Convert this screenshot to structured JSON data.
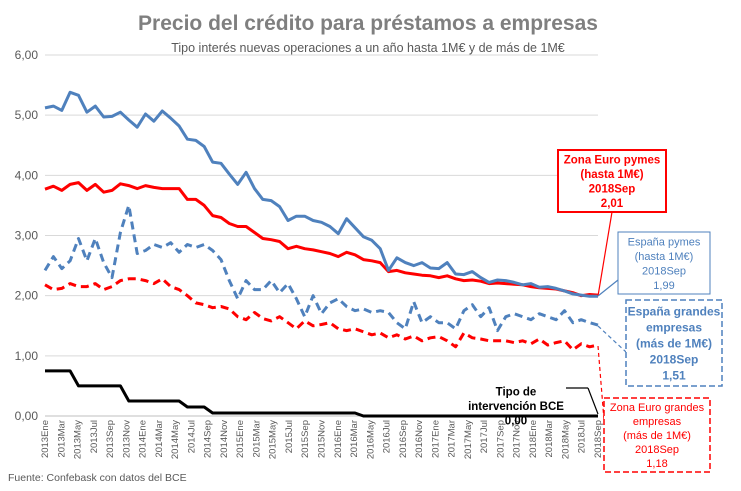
{
  "chart_data": {
    "type": "line",
    "title": "Precio del crédito para préstamos a empresas",
    "subtitle": "Tipo interés nuevas operaciones a un año hasta 1M€ y de más de 1M€",
    "source": "Fuente: Confebask con datos del BCE",
    "xlabel": "",
    "ylabel": "",
    "ylim": [
      0,
      6
    ],
    "ytick_labels": [
      "0,00",
      "1,00",
      "2,00",
      "3,00",
      "4,00",
      "5,00",
      "6,00"
    ],
    "grid": true,
    "x_tick_labels": [
      "2013Ene",
      "2013Mar",
      "2013May",
      "2013Jul",
      "2013Sep",
      "2013Nov",
      "2014Ene",
      "2014Mar",
      "2014May",
      "2014Jul",
      "2014Sep",
      "2014Nov",
      "2015Ene",
      "2015Mar",
      "2015May",
      "2015Jul",
      "2015Sep",
      "2015Nov",
      "2016Ene",
      "2016Mar",
      "2016May",
      "2016Jul",
      "2016Sep",
      "2016Nov",
      "2017Ene",
      "2017Mar",
      "2017May",
      "2017Jul",
      "2017Sep",
      "2017Nov",
      "2018Ene",
      "2018Mar",
      "2018May",
      "2018Jul",
      "2018Sep"
    ],
    "series": [
      {
        "name": "España pymes (hasta 1M€)",
        "color": "#4F81BD",
        "style": "solid",
        "values": [
          5.12,
          5.15,
          5.08,
          5.38,
          5.33,
          5.05,
          5.15,
          4.97,
          4.98,
          5.05,
          4.92,
          4.8,
          5.02,
          4.9,
          5.07,
          4.95,
          4.82,
          4.6,
          4.58,
          4.48,
          4.22,
          4.2,
          4.02,
          3.85,
          4.05,
          3.78,
          3.6,
          3.58,
          3.48,
          3.25,
          3.32,
          3.32,
          3.25,
          3.22,
          3.15,
          3.03,
          3.28,
          3.13,
          2.98,
          2.92,
          2.78,
          2.42,
          2.63,
          2.55,
          2.5,
          2.55,
          2.46,
          2.45,
          2.55,
          2.36,
          2.35,
          2.4,
          2.3,
          2.22,
          2.26,
          2.25,
          2.22,
          2.18,
          2.2,
          2.14,
          2.15,
          2.12,
          2.08,
          2.03,
          2.01,
          1.99,
          1.99
        ]
      },
      {
        "name": "Zona Euro pymes (hasta 1M€)",
        "color": "#FF0000",
        "style": "solid",
        "values": [
          3.77,
          3.82,
          3.75,
          3.85,
          3.88,
          3.75,
          3.85,
          3.72,
          3.75,
          3.86,
          3.83,
          3.78,
          3.83,
          3.8,
          3.78,
          3.78,
          3.78,
          3.6,
          3.6,
          3.5,
          3.33,
          3.3,
          3.2,
          3.15,
          3.15,
          3.05,
          2.95,
          2.93,
          2.9,
          2.78,
          2.82,
          2.78,
          2.76,
          2.73,
          2.7,
          2.65,
          2.72,
          2.68,
          2.6,
          2.58,
          2.55,
          2.4,
          2.42,
          2.38,
          2.36,
          2.34,
          2.33,
          2.3,
          2.33,
          2.28,
          2.25,
          2.26,
          2.24,
          2.2,
          2.21,
          2.2,
          2.19,
          2.18,
          2.15,
          2.13,
          2.12,
          2.11,
          2.08,
          2.05,
          2.0,
          2.02,
          2.01
        ]
      },
      {
        "name": "España grandes empresas (más de 1M€)",
        "color": "#4F81BD",
        "style": "dashed",
        "values": [
          2.42,
          2.65,
          2.45,
          2.58,
          2.95,
          2.58,
          2.95,
          2.55,
          2.3,
          3.05,
          3.5,
          2.7,
          2.75,
          2.85,
          2.8,
          2.88,
          2.72,
          2.85,
          2.8,
          2.85,
          2.75,
          2.6,
          2.25,
          1.95,
          2.25,
          2.1,
          2.1,
          2.25,
          2.05,
          2.2,
          1.95,
          1.65,
          2.0,
          1.7,
          1.88,
          1.95,
          1.82,
          1.75,
          1.78,
          1.72,
          1.75,
          1.72,
          1.55,
          1.45,
          1.9,
          1.55,
          1.65,
          1.55,
          1.55,
          1.45,
          1.75,
          1.85,
          1.65,
          1.8,
          1.42,
          1.65,
          1.7,
          1.65,
          1.6,
          1.7,
          1.65,
          1.6,
          1.75,
          1.55,
          1.6,
          1.55,
          1.51
        ]
      },
      {
        "name": "Zona Euro grandes empresas (más de 1M€)",
        "color": "#FF0000",
        "style": "dashed",
        "values": [
          2.18,
          2.1,
          2.12,
          2.2,
          2.15,
          2.15,
          2.2,
          2.1,
          2.15,
          2.25,
          2.28,
          2.28,
          2.25,
          2.2,
          2.28,
          2.15,
          2.1,
          2.0,
          1.88,
          1.85,
          1.8,
          1.82,
          1.78,
          1.65,
          1.6,
          1.72,
          1.62,
          1.58,
          1.65,
          1.55,
          1.45,
          1.58,
          1.5,
          1.52,
          1.55,
          1.45,
          1.42,
          1.45,
          1.4,
          1.35,
          1.38,
          1.3,
          1.35,
          1.28,
          1.33,
          1.25,
          1.3,
          1.32,
          1.25,
          1.15,
          1.38,
          1.3,
          1.28,
          1.25,
          1.25,
          1.25,
          1.22,
          1.25,
          1.2,
          1.28,
          1.18,
          1.22,
          1.25,
          1.1,
          1.2,
          1.15,
          1.18
        ]
      },
      {
        "name": "Tipo de intervención BCE",
        "color": "#000000",
        "style": "solid",
        "values": [
          0.75,
          0.75,
          0.75,
          0.75,
          0.5,
          0.5,
          0.5,
          0.5,
          0.5,
          0.5,
          0.25,
          0.25,
          0.25,
          0.25,
          0.25,
          0.25,
          0.25,
          0.15,
          0.15,
          0.15,
          0.05,
          0.05,
          0.05,
          0.05,
          0.05,
          0.05,
          0.05,
          0.05,
          0.05,
          0.05,
          0.05,
          0.05,
          0.05,
          0.05,
          0.05,
          0.05,
          0.05,
          0.05,
          0.0,
          0.0,
          0.0,
          0.0,
          0.0,
          0.0,
          0.0,
          0.0,
          0.0,
          0.0,
          0.0,
          0.0,
          0.0,
          0.0,
          0.0,
          0.0,
          0.0,
          0.0,
          0.0,
          0.0,
          0.0,
          0.0,
          0.0,
          0.0,
          0.0,
          0.0,
          0.0,
          0.0,
          0.0
        ]
      }
    ],
    "annotations": [
      {
        "series": 1,
        "lines": [
          "Zona Euro pymes",
          "(hasta 1M€)",
          "2018Sep",
          "2,01"
        ]
      },
      {
        "series": 0,
        "lines": [
          "España pymes",
          "(hasta 1M€)",
          "2018Sep",
          "1,99"
        ]
      },
      {
        "series": 2,
        "lines": [
          "España grandes",
          "empresas",
          "(más de 1M€)",
          "2018Sep",
          "1,51"
        ]
      },
      {
        "series": 4,
        "lines": [
          "Tipo de",
          "intervención BCE",
          "0,00"
        ]
      },
      {
        "series": 3,
        "lines": [
          "Zona Euro grandes",
          "empresas",
          "(más de 1M€)",
          "2018Sep",
          "1,18"
        ]
      }
    ]
  }
}
